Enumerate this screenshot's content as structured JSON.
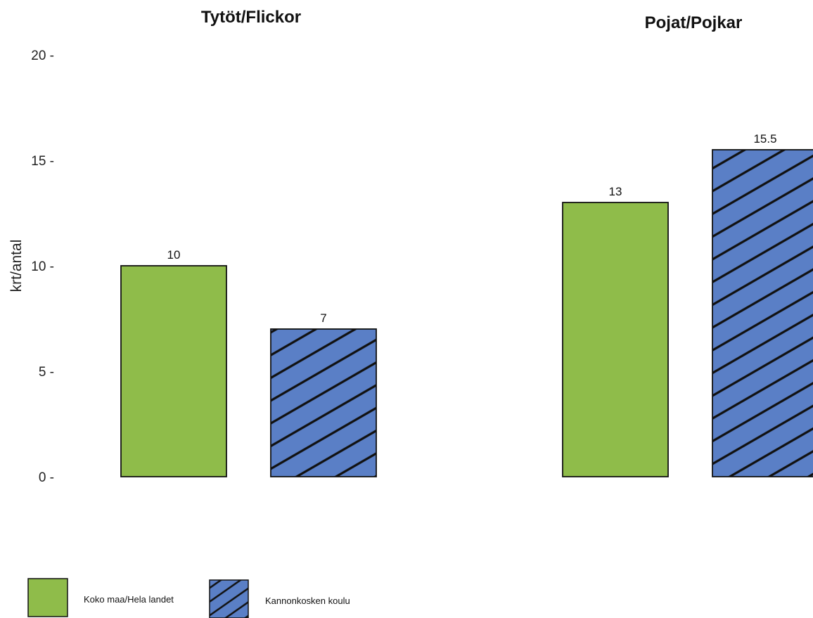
{
  "chart_data": {
    "type": "bar",
    "ylabel": "krt/antal",
    "ylim": [
      0,
      20
    ],
    "yticks": [
      0,
      5,
      10,
      15,
      20
    ],
    "grid": false,
    "legend_position": "bottom-left",
    "panels": [
      {
        "title": "Tytöt/Flickor"
      },
      {
        "title": "Pojat/Pojkar"
      }
    ],
    "series": [
      {
        "name": "Koko maa/Hela landet",
        "color": "#8fbc4a",
        "pattern": "solid",
        "values": [
          10,
          13
        ],
        "labels": [
          "10",
          "13"
        ]
      },
      {
        "name": "Kannonkosken koulu",
        "color": "#5a7fc6",
        "pattern": "diagonal-hatch",
        "values": [
          7,
          15.5
        ],
        "labels": [
          "7",
          "15.5"
        ]
      }
    ]
  }
}
